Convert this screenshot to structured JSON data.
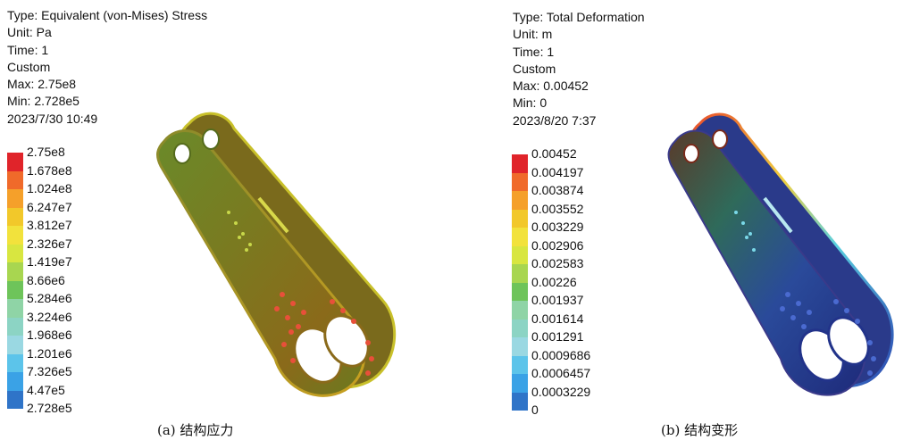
{
  "panel_a": {
    "type": "Type: Equivalent (von-Mises) Stress",
    "unit": "Unit: Pa",
    "time": "Time: 1",
    "custom": "Custom",
    "max": "Max: 2.75e8",
    "min": "Min: 2.728e5",
    "date": "2023/7/30 10:49",
    "legend_ticks": [
      "2.75e8",
      "1.678e8",
      "1.024e8",
      "6.247e7",
      "3.812e7",
      "2.326e7",
      "1.419e7",
      "8.66e6",
      "5.284e6",
      "3.224e6",
      "1.968e6",
      "1.201e6",
      "7.326e5",
      "4.47e5",
      "2.728e5"
    ],
    "caption": "(a) 结构应力"
  },
  "panel_b": {
    "type": "Type: Total Deformation",
    "unit": "Unit: m",
    "time": "Time: 1",
    "custom": "Custom",
    "max": "Max: 0.00452",
    "min": "Min: 0",
    "date": "2023/8/20 7:37",
    "legend_ticks": [
      "0.00452",
      "0.004197",
      "0.003874",
      "0.003552",
      "0.003229",
      "0.002906",
      "0.002583",
      "0.00226",
      "0.001937",
      "0.001614",
      "0.001291",
      "0.0009686",
      "0.0006457",
      "0.0003229",
      "0"
    ],
    "caption": "(b) 结构变形"
  },
  "legend_colors": [
    "#e0242a",
    "#f06a2a",
    "#f5a02a",
    "#f2c82a",
    "#f2e23c",
    "#d8e640",
    "#a8d650",
    "#6ec45a",
    "#8fd4a6",
    "#8cd4c4",
    "#9ad8e2",
    "#5cc4ea",
    "#3aa2e6",
    "#2f74c8",
    "#2a4aa8"
  ]
}
